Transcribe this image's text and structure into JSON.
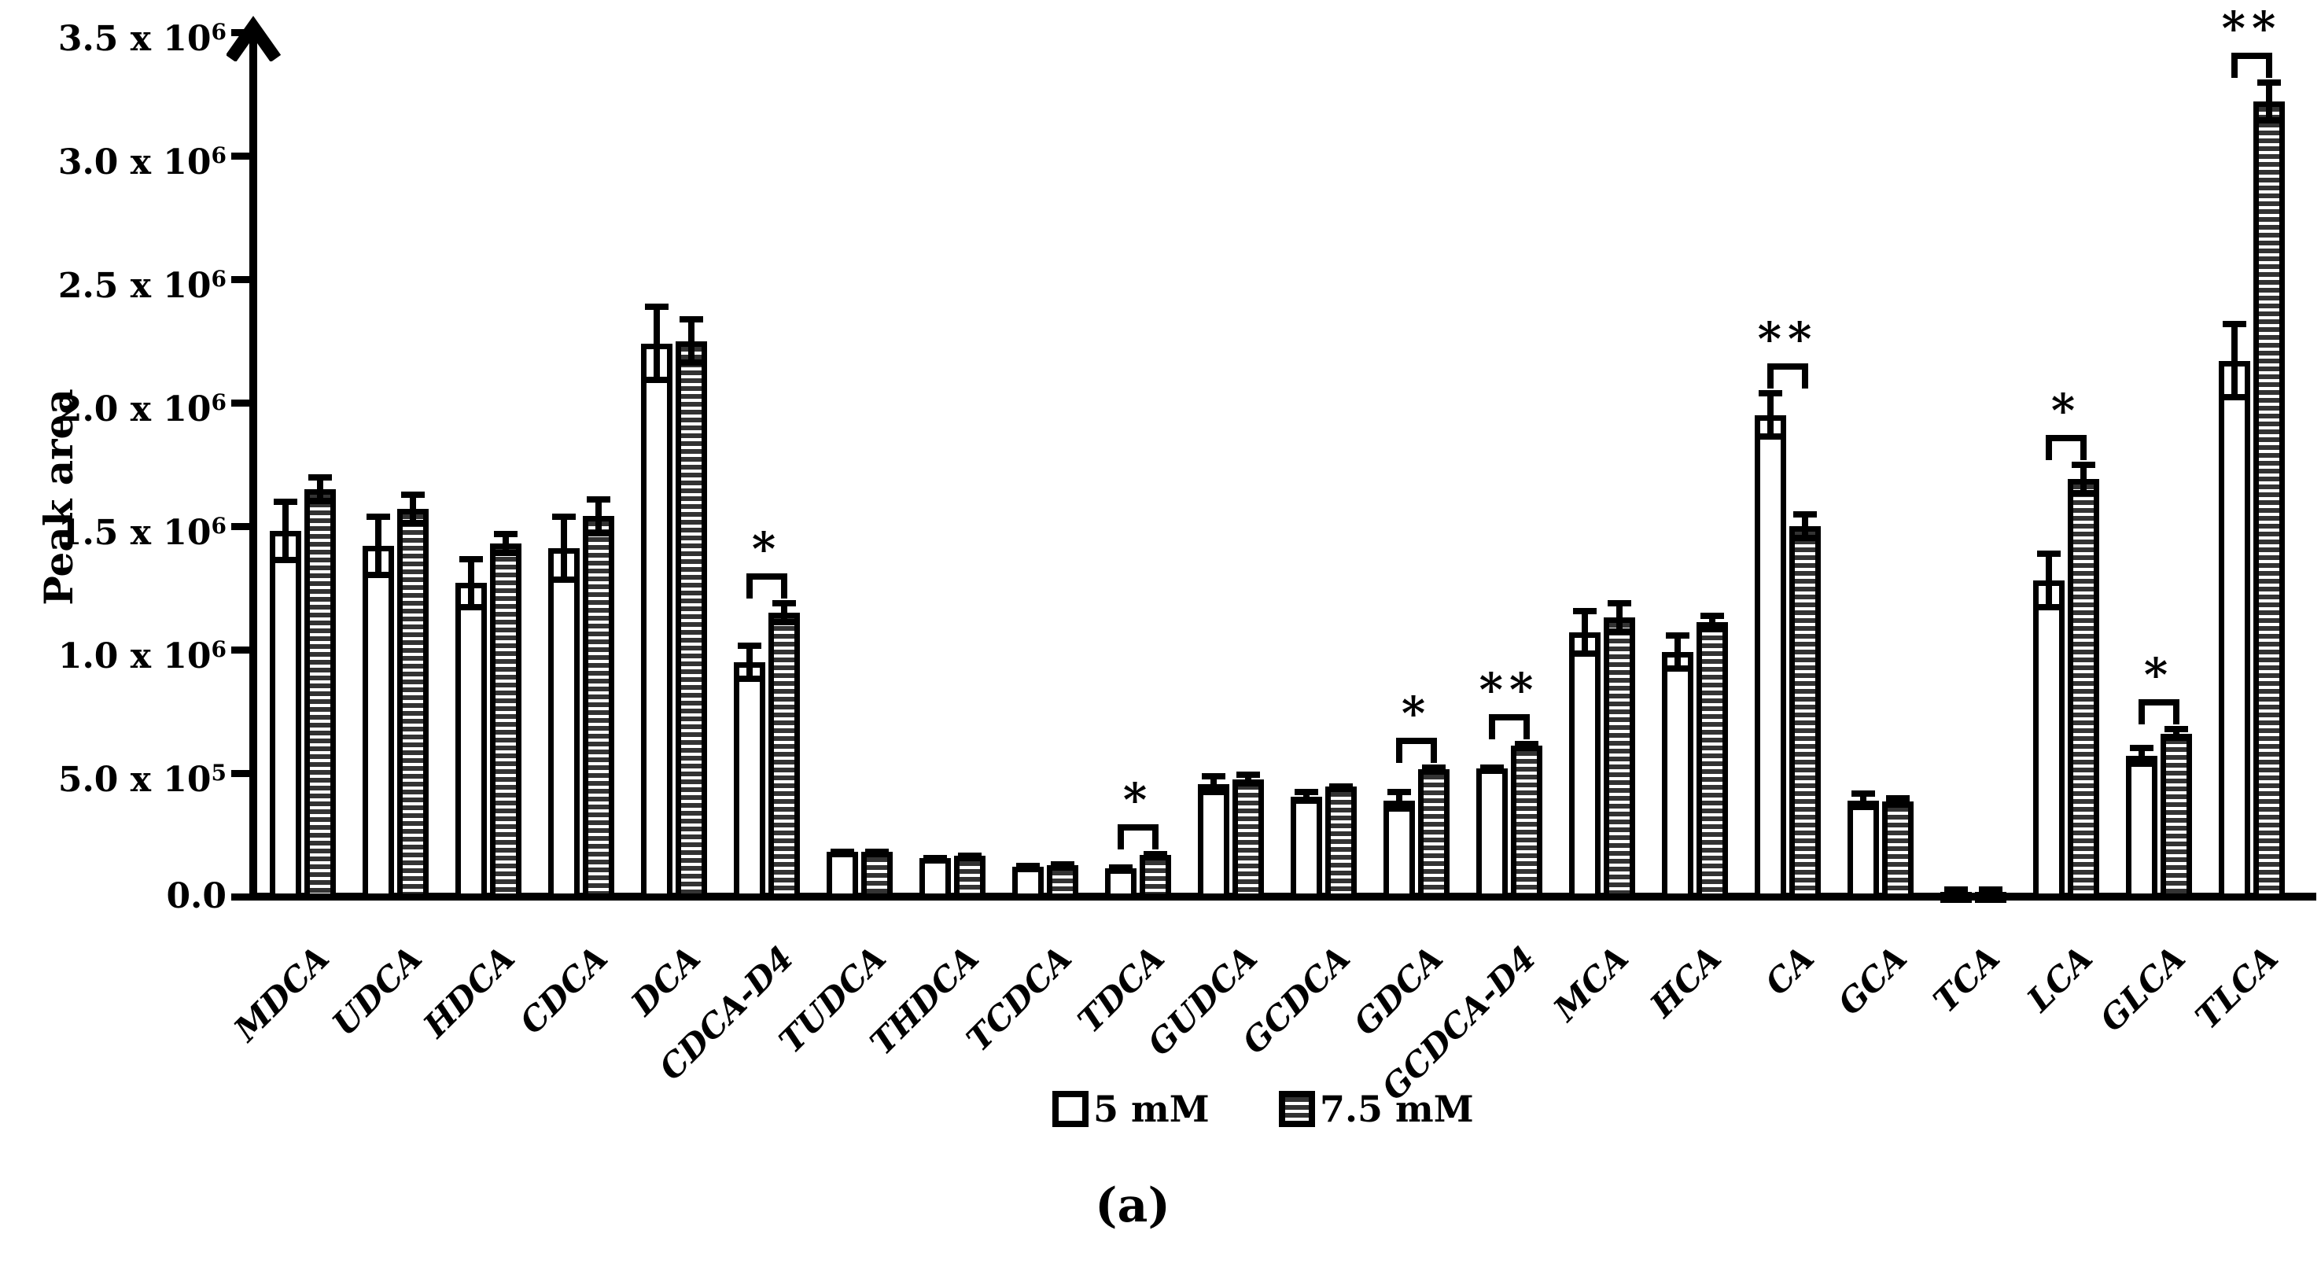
{
  "chart_data": {
    "type": "bar",
    "title": "",
    "xlabel": "",
    "ylabel": "Peak area",
    "ylim": [
      0,
      3500000
    ],
    "grid": false,
    "legend_position": "bottom-center",
    "categories": [
      "MDCA",
      "UDCA",
      "HDCA",
      "CDCA",
      "DCA",
      "CDCA-D4",
      "TUDCA",
      "THDCA",
      "TCDCA",
      "TDCA",
      "GUDCA",
      "GCDCA",
      "GDCA",
      "GCDCA-D4",
      "MCA",
      "HCA",
      "CA",
      "GCA",
      "TCA",
      "LCA",
      "GLCA",
      "TLCA"
    ],
    "series": [
      {
        "name": "5 mM",
        "pattern": "white",
        "values": [
          1480000,
          1420000,
          1270000,
          1410000,
          2240000,
          950000,
          180000,
          155000,
          122000,
          115000,
          455000,
          405000,
          390000,
          520000,
          1070000,
          990000,
          1950000,
          390000,
          20000,
          1280000,
          570000,
          2170000
        ],
        "errors": [
          130000,
          130000,
          110000,
          140000,
          160000,
          80000,
          15000,
          12000,
          10000,
          15000,
          45000,
          30000,
          45000,
          15000,
          100000,
          80000,
          100000,
          40000,
          5000,
          120000,
          45000,
          160000
        ]
      },
      {
        "name": "7.5 mM",
        "pattern": "horizontal-stripes",
        "values": [
          1650000,
          1570000,
          1430000,
          1540000,
          2250000,
          1150000,
          180000,
          165000,
          127000,
          170000,
          475000,
          445000,
          515000,
          610000,
          1130000,
          1110000,
          1500000,
          385000,
          20000,
          1690000,
          660000,
          3220000
        ],
        "errors": [
          60000,
          70000,
          50000,
          80000,
          100000,
          50000,
          15000,
          12000,
          10000,
          15000,
          30000,
          15000,
          20000,
          20000,
          70000,
          40000,
          60000,
          25000,
          5000,
          70000,
          30000,
          90000
        ]
      }
    ],
    "yticks": [
      {
        "mantissa": "3.5 x 10",
        "sup": "6",
        "value": 3500000
      },
      {
        "mantissa": "3.0 x 10",
        "sup": "6",
        "value": 3000000
      },
      {
        "mantissa": "2.5 x 10",
        "sup": "6",
        "value": 2500000
      },
      {
        "mantissa": "2.0 x 10",
        "sup": "6",
        "value": 2000000
      },
      {
        "mantissa": "1.5 x 10",
        "sup": "6",
        "value": 1500000
      },
      {
        "mantissa": "1.0 x 10",
        "sup": "6",
        "value": 1000000
      },
      {
        "mantissa": "5.0 x 10",
        "sup": "5",
        "value": 500000
      },
      {
        "mantissa": "0.0",
        "sup": "",
        "value": 0
      }
    ],
    "significance": [
      {
        "category": "CDCA-D4",
        "label": "*"
      },
      {
        "category": "TDCA",
        "label": "*"
      },
      {
        "category": "GDCA",
        "label": "*"
      },
      {
        "category": "GCDCA-D4",
        "label": "**"
      },
      {
        "category": "CA",
        "label": "**"
      },
      {
        "category": "LCA",
        "label": "*"
      },
      {
        "category": "GLCA",
        "label": "*"
      },
      {
        "category": "TLCA",
        "label": "**"
      }
    ]
  },
  "caption": "(a)",
  "colors": {
    "ink": "#000000",
    "bar_fill": "#ffffff",
    "stripe_dark": "#333333"
  }
}
